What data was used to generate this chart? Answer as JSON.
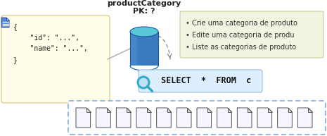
{
  "title": "productCategory",
  "subtitle": "PK: ?",
  "bullet_items": [
    "• Crie uma categoria de produto",
    "• Edite uma categoria de produ",
    "• Liste as categorias de produto"
  ],
  "select_text": "SELECT  *  FROM  c",
  "json_box_color": "#fffde7",
  "json_box_edge": "#d4c97a",
  "bullet_box_color": "#f0f4e0",
  "bullet_box_edge": "#c8d096",
  "select_box_color": "#ddeeff",
  "select_box_edge": "#99bbdd",
  "docs_box_color": "#ffffff",
  "docs_box_edge": "#6699cc",
  "cylinder_top_color": "#5bc8d8",
  "cylinder_body_color": "#3a7abf",
  "magnifier_color": "#33aacc",
  "num_docs": 12,
  "title_fontsize": 8,
  "subtitle_fontsize": 8,
  "json_fontsize": 7,
  "bullet_fontsize": 7,
  "select_fontsize": 8.5
}
